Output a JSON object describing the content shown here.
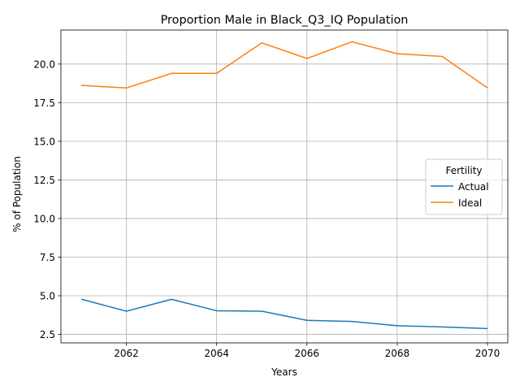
{
  "chart_data": {
    "type": "line",
    "title": "Proportion Male in Black_Q3_IQ Population",
    "xlabel": "Years",
    "ylabel": "% of Population",
    "x": [
      2061,
      2062,
      2063,
      2064,
      2065,
      2066,
      2067,
      2068,
      2069,
      2070
    ],
    "xlim": [
      2060.55,
      2070.45
    ],
    "ylim": [
      1.95,
      22.2
    ],
    "xticks": [
      2062,
      2064,
      2066,
      2068,
      2070
    ],
    "yticks": [
      2.5,
      5.0,
      7.5,
      10.0,
      12.5,
      15.0,
      17.5,
      20.0
    ],
    "grid": true,
    "legend": {
      "title": "Fertility",
      "placement": "center-right"
    },
    "series": [
      {
        "name": "Actual",
        "color": "#1f77b4",
        "values": [
          4.78,
          4.0,
          4.77,
          4.03,
          4.0,
          3.41,
          3.34,
          3.06,
          2.98,
          2.88
        ]
      },
      {
        "name": "Ideal",
        "color": "#ff7f0e",
        "values": [
          18.62,
          18.45,
          19.4,
          19.4,
          21.37,
          20.36,
          21.44,
          20.67,
          20.49,
          18.45
        ]
      }
    ]
  }
}
